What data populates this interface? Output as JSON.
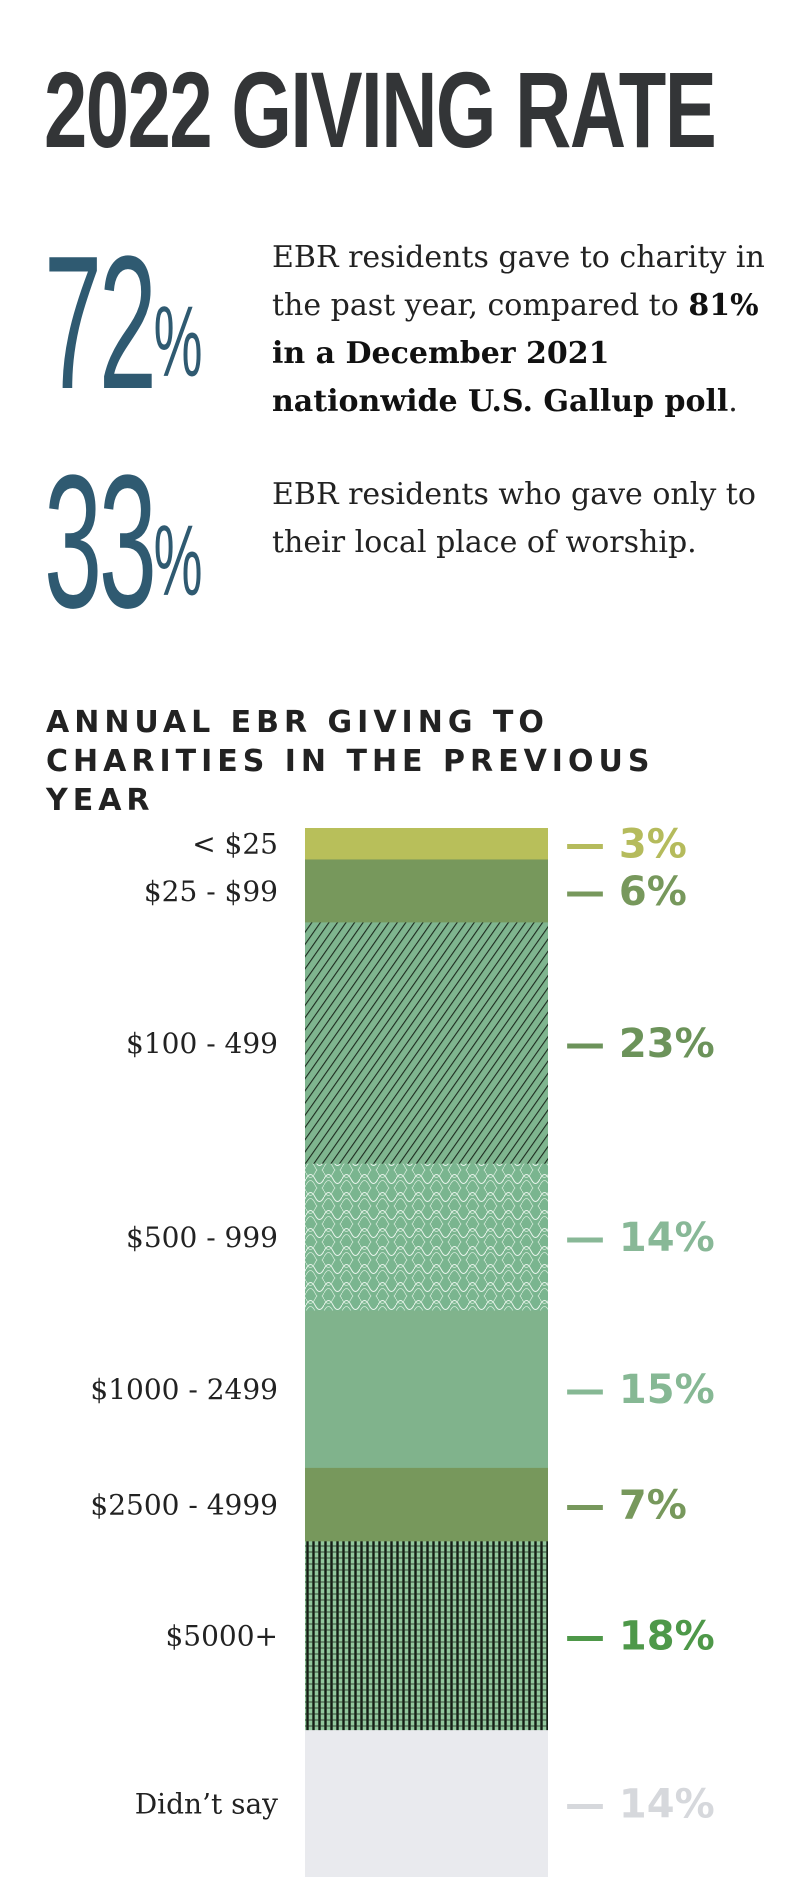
{
  "header": {
    "title": "2022 GIVING RATE"
  },
  "stats": [
    {
      "number": "72",
      "percent_sign": "%",
      "text_plain": "EBR residents gave to charity in the past year, compared to ",
      "text_bold": "81% in a December 2021 nationwide U.S. Gallup poll",
      "text_end": "."
    },
    {
      "number": "33",
      "percent_sign": "%",
      "text_plain": "EBR residents who gave only to their local place of worship.",
      "text_bold": "",
      "text_end": ""
    }
  ],
  "chart_data": {
    "type": "bar",
    "orientation": "stacked-vertical",
    "title": "ANNUAL EBR GIVING TO CHARITIES IN THE PREVIOUS YEAR",
    "categories": [
      "< $25",
      "$25 - $99",
      "$100 - 499",
      "$500 - 999",
      "$1000 - 2499",
      "$2500 - 4999",
      "$5000+",
      "Didn’t say"
    ],
    "values": [
      3,
      6,
      23,
      14,
      15,
      7,
      18,
      14
    ],
    "value_labels": [
      "— 3%",
      "— 6%",
      "— 23%",
      "— 14%",
      "— 15%",
      "— 7%",
      "— 18%",
      "— 14%"
    ],
    "unit": "%",
    "colors": [
      "#b8bf5a",
      "#77985c",
      "#6ea27d",
      "#7ab58f",
      "#80b38c",
      "#77985c",
      "#6f9e6e",
      "#e9eaee"
    ],
    "label_colors": [
      "#b5bb5c",
      "#77985c",
      "#6c935a",
      "#88b897",
      "#86b894",
      "#77985c",
      "#4e9849",
      "#d6d8dc"
    ],
    "patterned": [
      false,
      false,
      true,
      true,
      false,
      false,
      true,
      false
    ]
  }
}
